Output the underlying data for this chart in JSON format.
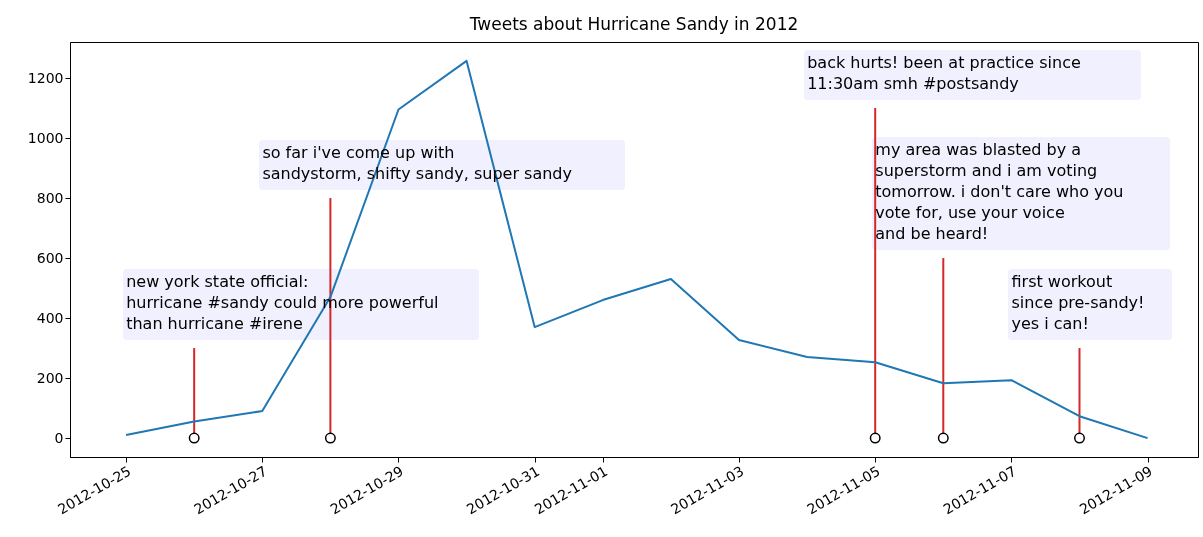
{
  "chart_data": {
    "type": "line",
    "title": "Tweets about Hurricane Sandy in 2012",
    "series": [
      {
        "type": "line",
        "color": "#1f77b4",
        "x": [
          "2012-10-25",
          "2012-10-26",
          "2012-10-27",
          "2012-10-28",
          "2012-10-29",
          "2012-10-30",
          "2012-10-31",
          "2012-11-01",
          "2012-11-02",
          "2012-11-03",
          "2012-11-04",
          "2012-11-05",
          "2012-11-06",
          "2012-11-07",
          "2012-11-08",
          "2012-11-09"
        ],
        "values": [
          10,
          55,
          90,
          470,
          1095,
          1257,
          370,
          460,
          530,
          327,
          270,
          253,
          183,
          193,
          73,
          0
        ]
      },
      {
        "type": "bar",
        "color": "#d62728",
        "x": [
          "2012-10-26",
          "2012-10-28",
          "2012-11-05",
          "2012-11-06",
          "2012-11-08"
        ],
        "values": [
          300,
          800,
          1100,
          600,
          300
        ]
      },
      {
        "type": "scatter",
        "color": "#000000",
        "marker": "circle",
        "x": [
          "2012-10-26",
          "2012-10-28",
          "2012-11-05",
          "2012-11-06",
          "2012-11-08"
        ],
        "values": [
          0,
          0,
          0,
          0,
          0
        ]
      }
    ],
    "annotations": [
      {
        "text": "new york state official:\nhurricane #sandy could more powerful\nthan hurricane #irene",
        "x": "2012-10-26",
        "y": 300
      },
      {
        "text": "so far i've come up with\nsandystorm, shifty sandy, super sandy",
        "x": "2012-10-28",
        "y": 800
      },
      {
        "text": "back hurts! been at practice since\n11:30am smh #postsandy",
        "x": "2012-11-05",
        "y": 1100
      },
      {
        "text": "my area was blasted by a\nsuperstorm and i am voting\ntomorrow. i don't care who you\nvote for, use your voice\nand be heard!",
        "x": "2012-11-06",
        "y": 600
      },
      {
        "text": "first workout\nsince pre-sandy!\nyes i can!",
        "x": "2012-11-08",
        "y": 300
      }
    ],
    "xlim": [
      "2012-10-24T06:00",
      "2012-11-09T16:00"
    ],
    "xticks": [
      "2012-10-25",
      "2012-10-27",
      "2012-10-29",
      "2012-10-31",
      "2012-11-01",
      "2012-11-03",
      "2012-11-05",
      "2012-11-07",
      "2012-11-09"
    ],
    "ylim": [
      -63,
      1320
    ],
    "yticks": [
      0,
      200,
      400,
      600,
      800,
      1000,
      1200
    ],
    "grid": false
  }
}
